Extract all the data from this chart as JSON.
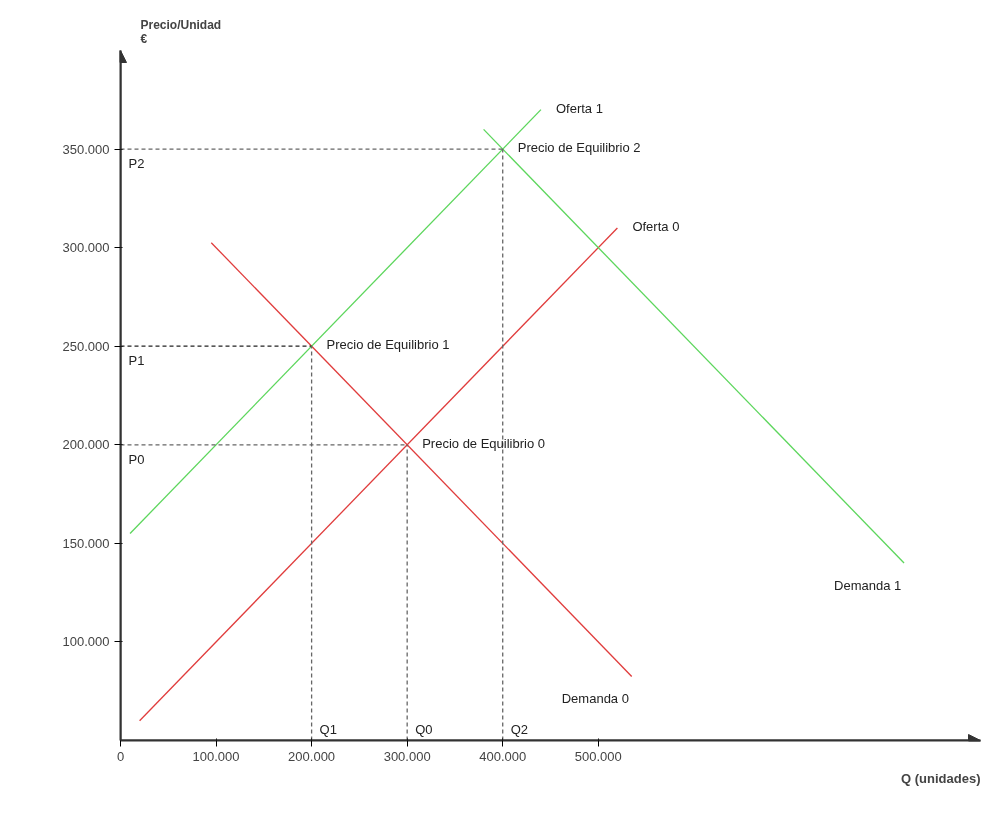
{
  "chart_data": {
    "type": "line",
    "xlabel": "Q (unidades)",
    "ylabel": "Precio/Unidad\n€",
    "xlim": [
      0,
      900000
    ],
    "ylim": [
      50000,
      400000
    ],
    "xticks": [
      {
        "value": 0,
        "label": "0"
      },
      {
        "value": 100000,
        "label": "100.000"
      },
      {
        "value": 200000,
        "label": "200.000"
      },
      {
        "value": 300000,
        "label": "300.000"
      },
      {
        "value": 400000,
        "label": "400.000"
      },
      {
        "value": 500000,
        "label": "500.000"
      }
    ],
    "yticks": [
      {
        "value": 100000,
        "label": "100.000"
      },
      {
        "value": 150000,
        "label": "150.000"
      },
      {
        "value": 200000,
        "label": "200.000"
      },
      {
        "value": 250000,
        "label": "250.000"
      },
      {
        "value": 300000,
        "label": "300.000"
      },
      {
        "value": 350000,
        "label": "350.000"
      }
    ],
    "grid": false,
    "series": [
      {
        "name": "Oferta 0",
        "color": "#e03c3c",
        "x": [
          20000,
          520000
        ],
        "values": [
          60000,
          310000
        ]
      },
      {
        "name": "Demanda 0",
        "color": "#e03c3c",
        "x": [
          95000,
          535000
        ],
        "values": [
          302500,
          82500
        ]
      },
      {
        "name": "Oferta 1",
        "color": "#5cd65c",
        "x": [
          10000,
          440000
        ],
        "values": [
          155000,
          370000
        ]
      },
      {
        "name": "Demanda 1",
        "color": "#5cd65c",
        "x": [
          380000,
          820000
        ],
        "values": [
          360000,
          140000
        ]
      },
      {
        "color": "#666666",
        "line_style": "dashed",
        "x": [
          0,
          400000
        ],
        "values": [
          350000,
          350000
        ]
      },
      {
        "color": "#222222",
        "line_style": "dashed",
        "x": [
          0,
          200000
        ],
        "values": [
          250000,
          250000
        ]
      },
      {
        "color": "#666666",
        "line_style": "dashed",
        "x": [
          0,
          300000
        ],
        "values": [
          200000,
          200000
        ]
      },
      {
        "color": "#666666",
        "line_style": "dashed",
        "x": [
          200000,
          200000
        ],
        "values": [
          50000,
          250000
        ]
      },
      {
        "color": "#666666",
        "line_style": "dashed",
        "x": [
          300000,
          300000
        ],
        "values": [
          50000,
          200000
        ]
      },
      {
        "color": "#666666",
        "line_style": "dashed",
        "x": [
          400000,
          400000
        ],
        "values": [
          50000,
          350000
        ]
      }
    ],
    "annotations": [
      {
        "text": "Precio de Equilibrio 2",
        "x": 400000,
        "y": 350000
      },
      {
        "text": "Precio de Equilibrio 1",
        "x": 200000,
        "y": 250000
      },
      {
        "text": "Precio de Equilibrio 0",
        "x": 300000,
        "y": 200000
      },
      {
        "text": "P2",
        "x": 0,
        "y": 350000
      },
      {
        "text": "P1",
        "x": 0,
        "y": 250000
      },
      {
        "text": "P0",
        "x": 0,
        "y": 200000
      },
      {
        "text": "Q1",
        "x": 200000,
        "y": 50000
      },
      {
        "text": "Q0",
        "x": 300000,
        "y": 50000
      },
      {
        "text": "Q2",
        "x": 400000,
        "y": 50000
      }
    ]
  }
}
